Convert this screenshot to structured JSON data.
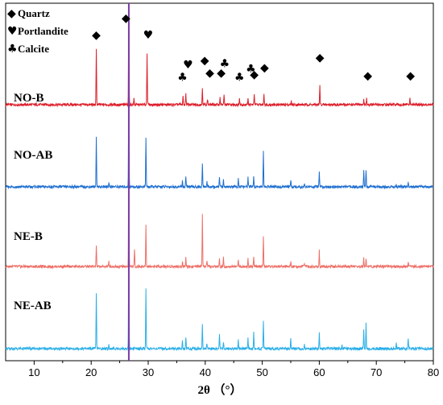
{
  "chart_data": {
    "type": "line",
    "title": "",
    "xlabel": "2θ （°）",
    "ylabel": "",
    "xlim": [
      5,
      80
    ],
    "xticks": [
      10,
      20,
      30,
      40,
      50,
      60,
      70,
      80
    ],
    "grid": false,
    "legend": {
      "placement": "top-left",
      "entries": [
        {
          "symbol": "◆",
          "label": "Quartz",
          "icon": "diamond-icon"
        },
        {
          "symbol": "♥",
          "label": "Portlandite",
          "icon": "heart-icon"
        },
        {
          "symbol": "♣",
          "label": "Calcite",
          "icon": "club-icon"
        }
      ]
    },
    "reference_line": {
      "x": 26.6,
      "color": "#7a3aa8"
    },
    "markers": [
      {
        "symbol": "◆",
        "phase": "Quartz",
        "x": 20.9,
        "level": 1.0
      },
      {
        "symbol": "◆",
        "phase": "Quartz",
        "x": 26.1,
        "level": 1.3
      },
      {
        "symbol": "♥",
        "phase": "Portlandite",
        "x": 30.0,
        "level": 1.0
      },
      {
        "symbol": "♣",
        "phase": "Calcite",
        "x": 36.0,
        "level": 0.25
      },
      {
        "symbol": "♥",
        "phase": "Portlandite",
        "x": 37.0,
        "level": 0.47
      },
      {
        "symbol": "◆",
        "phase": "Quartz",
        "x": 39.9,
        "level": 0.55
      },
      {
        "symbol": "◆",
        "phase": "Quartz",
        "x": 40.8,
        "level": 0.33
      },
      {
        "symbol": "◆",
        "phase": "Quartz",
        "x": 42.8,
        "level": 0.33
      },
      {
        "symbol": "♣",
        "phase": "Calcite",
        "x": 43.4,
        "level": 0.49
      },
      {
        "symbol": "♣",
        "phase": "Calcite",
        "x": 46.0,
        "level": 0.25
      },
      {
        "symbol": "♣",
        "phase": "Calcite",
        "x": 48.0,
        "level": 0.4
      },
      {
        "symbol": "◆",
        "phase": "Quartz",
        "x": 48.6,
        "level": 0.3
      },
      {
        "symbol": "◆",
        "phase": "Quartz",
        "x": 50.4,
        "level": 0.42
      },
      {
        "symbol": "◆",
        "phase": "Quartz",
        "x": 60.1,
        "level": 0.6
      },
      {
        "symbol": "◆",
        "phase": "Quartz",
        "x": 68.5,
        "level": 0.28
      },
      {
        "symbol": "◆",
        "phase": "Quartz",
        "x": 76.0,
        "level": 0.28
      }
    ],
    "series": [
      {
        "name": "NO-B",
        "color": "#dd1e2a",
        "peaks": [
          {
            "x": 20.9,
            "h": 68
          },
          {
            "x": 26.6,
            "h": 130
          },
          {
            "x": 27.5,
            "h": 8
          },
          {
            "x": 29.8,
            "h": 65
          },
          {
            "x": 36.1,
            "h": 10
          },
          {
            "x": 36.6,
            "h": 14
          },
          {
            "x": 39.5,
            "h": 22
          },
          {
            "x": 40.4,
            "h": 7
          },
          {
            "x": 42.6,
            "h": 10
          },
          {
            "x": 43.3,
            "h": 12
          },
          {
            "x": 46.0,
            "h": 8
          },
          {
            "x": 47.5,
            "h": 9
          },
          {
            "x": 48.6,
            "h": 14
          },
          {
            "x": 50.3,
            "h": 14
          },
          {
            "x": 55.1,
            "h": 4
          },
          {
            "x": 60.1,
            "h": 24
          },
          {
            "x": 67.8,
            "h": 6
          },
          {
            "x": 68.3,
            "h": 8
          },
          {
            "x": 75.9,
            "h": 8
          }
        ]
      },
      {
        "name": "NO-AB",
        "color": "#1f6fd0",
        "peaks": [
          {
            "x": 20.9,
            "h": 62
          },
          {
            "x": 23.1,
            "h": 6
          },
          {
            "x": 26.6,
            "h": 130
          },
          {
            "x": 29.6,
            "h": 62
          },
          {
            "x": 36.0,
            "h": 8
          },
          {
            "x": 36.6,
            "h": 14
          },
          {
            "x": 39.5,
            "h": 30
          },
          {
            "x": 40.3,
            "h": 7
          },
          {
            "x": 42.5,
            "h": 13
          },
          {
            "x": 43.2,
            "h": 9
          },
          {
            "x": 45.8,
            "h": 11
          },
          {
            "x": 47.5,
            "h": 12
          },
          {
            "x": 48.5,
            "h": 14
          },
          {
            "x": 50.2,
            "h": 46
          },
          {
            "x": 55.0,
            "h": 9
          },
          {
            "x": 57.4,
            "h": 5
          },
          {
            "x": 60.0,
            "h": 20
          },
          {
            "x": 67.8,
            "h": 22
          },
          {
            "x": 68.2,
            "h": 22
          },
          {
            "x": 73.5,
            "h": 4
          },
          {
            "x": 75.6,
            "h": 5
          }
        ]
      },
      {
        "name": "NE-B",
        "color": "#ee7068",
        "peaks": [
          {
            "x": 20.9,
            "h": 27
          },
          {
            "x": 23.1,
            "h": 6
          },
          {
            "x": 26.6,
            "h": 130
          },
          {
            "x": 27.6,
            "h": 22
          },
          {
            "x": 29.6,
            "h": 52
          },
          {
            "x": 36.0,
            "h": 7
          },
          {
            "x": 36.6,
            "h": 12
          },
          {
            "x": 39.5,
            "h": 66
          },
          {
            "x": 40.3,
            "h": 6
          },
          {
            "x": 42.5,
            "h": 10
          },
          {
            "x": 43.2,
            "h": 11
          },
          {
            "x": 45.8,
            "h": 9
          },
          {
            "x": 47.5,
            "h": 10
          },
          {
            "x": 48.5,
            "h": 12
          },
          {
            "x": 50.2,
            "h": 38
          },
          {
            "x": 55.0,
            "h": 6
          },
          {
            "x": 57.4,
            "h": 5
          },
          {
            "x": 60.0,
            "h": 20
          },
          {
            "x": 67.8,
            "h": 10
          },
          {
            "x": 68.2,
            "h": 11
          },
          {
            "x": 75.6,
            "h": 5
          }
        ]
      },
      {
        "name": "NE-AB",
        "color": "#2aaee8",
        "peaks": [
          {
            "x": 20.9,
            "h": 70
          },
          {
            "x": 23.1,
            "h": 5
          },
          {
            "x": 26.6,
            "h": 130
          },
          {
            "x": 29.6,
            "h": 74
          },
          {
            "x": 36.0,
            "h": 9
          },
          {
            "x": 36.6,
            "h": 15
          },
          {
            "x": 39.5,
            "h": 30
          },
          {
            "x": 40.3,
            "h": 6
          },
          {
            "x": 42.5,
            "h": 19
          },
          {
            "x": 43.2,
            "h": 9
          },
          {
            "x": 45.8,
            "h": 12
          },
          {
            "x": 47.5,
            "h": 13
          },
          {
            "x": 48.5,
            "h": 20
          },
          {
            "x": 50.2,
            "h": 33
          },
          {
            "x": 55.0,
            "h": 14
          },
          {
            "x": 57.4,
            "h": 5
          },
          {
            "x": 60.0,
            "h": 20
          },
          {
            "x": 64.0,
            "h": 4
          },
          {
            "x": 67.8,
            "h": 23
          },
          {
            "x": 68.2,
            "h": 31
          },
          {
            "x": 73.5,
            "h": 6
          },
          {
            "x": 75.6,
            "h": 14
          }
        ]
      }
    ]
  }
}
